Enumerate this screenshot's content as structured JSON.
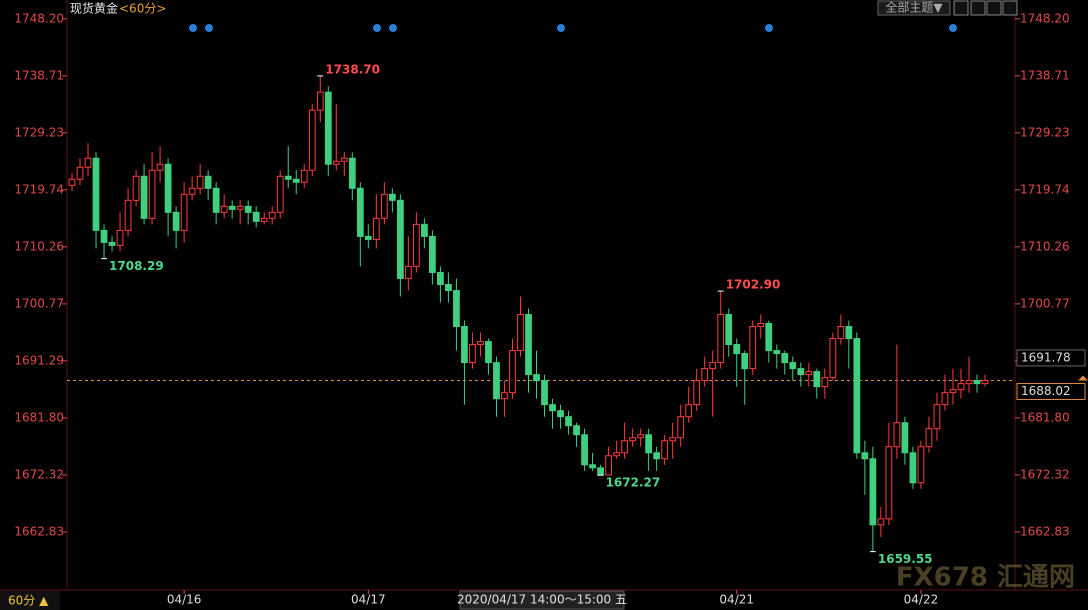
{
  "chart_data": {
    "type": "candlestick",
    "title": "现货黄金",
    "interval": "<60分>",
    "interval_button": "60分 ▲",
    "theme_button": "全部主题▼",
    "crosshair_time": "2020/04/17 14:00～15:00 五",
    "watermark": "FX678 汇通网",
    "ylim": [
      1653.5,
      1748.5
    ],
    "yticks": [
      {
        "value": 1748.2,
        "label": "1748.20"
      },
      {
        "value": 1738.71,
        "label": "1738.71"
      },
      {
        "value": 1729.23,
        "label": "1729.23"
      },
      {
        "value": 1719.74,
        "label": "1719.74"
      },
      {
        "value": 1710.26,
        "label": "1710.26"
      },
      {
        "value": 1700.77,
        "label": "1700.77"
      },
      {
        "value": 1691.29,
        "label": "1691.29"
      },
      {
        "value": 1681.8,
        "label": "1681.80"
      },
      {
        "value": 1672.32,
        "label": "1672.32"
      },
      {
        "value": 1662.83,
        "label": "1662.83"
      }
    ],
    "reference_price": 1691.78,
    "last_price": 1688.02,
    "extremes": [
      {
        "value": 1738.7,
        "label": "1738.70"
      },
      {
        "value": 1708.29,
        "label": "1708.29"
      },
      {
        "value": 1702.9,
        "label": "1702.90"
      },
      {
        "value": 1672.27,
        "label": "1672.27"
      },
      {
        "value": 1659.55,
        "label": "1659.55"
      }
    ],
    "up_color": "#ff3b3b",
    "down_color": "#3ed07f",
    "categories": [
      null,
      null,
      null,
      null,
      null,
      null,
      null,
      null,
      null,
      null,
      null,
      null,
      null,
      null,
      "04/16",
      null,
      null,
      null,
      null,
      null,
      null,
      null,
      null,
      null,
      null,
      null,
      null,
      null,
      null,
      null,
      null,
      null,
      null,
      null,
      null,
      null,
      null,
      "04/17",
      null,
      null,
      null,
      null,
      null,
      null,
      null,
      null,
      null,
      null,
      null,
      null,
      null,
      null,
      null,
      null,
      null,
      null,
      null,
      null,
      null,
      null,
      null,
      null,
      null,
      null,
      null,
      null,
      null,
      null,
      null,
      null,
      null,
      null,
      null,
      null,
      null,
      null,
      null,
      null,
      null,
      null,
      null,
      null,
      null,
      "04/21",
      null,
      null,
      null,
      null,
      null,
      null,
      null,
      null,
      null,
      null,
      null,
      null,
      null,
      null,
      null,
      null,
      null,
      null,
      null,
      null,
      null,
      null,
      "04/22",
      null,
      null,
      null,
      null,
      null,
      null,
      null,
      null
    ],
    "series": [
      {
        "open": [
          1720.5,
          1721.5,
          1723.5,
          1725,
          1713,
          1711,
          1710.5,
          1713,
          1718,
          1722,
          1715,
          1723,
          1724,
          1716,
          1713,
          1719,
          1720,
          1722,
          1720,
          1716,
          1717,
          1716.5,
          1717,
          1716,
          1714.5,
          1715,
          1716,
          1722,
          1721.5,
          1721,
          1723,
          1733,
          1736,
          1724,
          1724.5,
          1725,
          1720,
          1712,
          1711.5,
          1715,
          1719,
          1718,
          1705,
          1707,
          1714,
          1712,
          1706,
          1704,
          1703,
          1697,
          1691,
          1694,
          1694.5,
          1691,
          1685,
          1686,
          1693,
          1699,
          1689,
          1688,
          1684,
          1683,
          1682,
          1680.5,
          1679,
          1674,
          1673.5,
          1672.3,
          1675.5,
          1676,
          1678,
          1678.5,
          1679,
          1676,
          1675,
          1678,
          1678.5,
          1682,
          1684,
          1688,
          1690,
          1691,
          1699,
          1694,
          1692.5,
          1690,
          1697,
          1697.5,
          1693,
          1692.5,
          1691,
          1690,
          1689,
          1689.5,
          1687,
          1688.5,
          1695,
          1697,
          1695,
          1676,
          1675,
          1664,
          1665,
          1677,
          1681,
          1676,
          1671,
          1677,
          1680,
          1684,
          1686,
          1686.5,
          1687.5,
          1688,
          1687.5
        ],
        "high": [
          1722.5,
          1725,
          1727.5,
          1726,
          1714,
          1712,
          1716,
          1720,
          1723,
          1724,
          1726,
          1727,
          1725,
          1717,
          1721,
          1722,
          1724,
          1723,
          1721,
          1719,
          1718,
          1718,
          1718,
          1717,
          1716,
          1717,
          1723,
          1727,
          1723,
          1724,
          1734,
          1738.7,
          1737,
          1734,
          1726,
          1726,
          1721,
          1714,
          1719,
          1721,
          1720,
          1719,
          1712,
          1716,
          1715,
          1713,
          1707,
          1706,
          1705,
          1698,
          1696,
          1696,
          1695,
          1692,
          1688,
          1695,
          1702,
          1700,
          1693,
          1689,
          1685,
          1684,
          1683,
          1681,
          1680,
          1676,
          1674,
          1677,
          1678,
          1681,
          1680,
          1680,
          1680,
          1677,
          1679,
          1681,
          1684,
          1687,
          1690,
          1692,
          1693,
          1702.9,
          1700,
          1695,
          1693,
          1698,
          1699,
          1698,
          1694,
          1693,
          1692,
          1691,
          1691,
          1690,
          1690,
          1696,
          1699,
          1698,
          1696,
          1678,
          1677,
          1667,
          1681,
          1694,
          1682,
          1677,
          1678,
          1682,
          1686,
          1689,
          1690,
          1690,
          1692,
          1689,
          1689
        ],
        "low": [
          1719.5,
          1720.5,
          1722,
          1710,
          1708.29,
          1709.5,
          1709.5,
          1712,
          1717,
          1714,
          1714,
          1721,
          1712,
          1710,
          1711,
          1718,
          1719,
          1718,
          1714,
          1715,
          1715,
          1714,
          1714,
          1713.5,
          1714,
          1714,
          1715,
          1720,
          1719,
          1720,
          1722,
          1731,
          1722,
          1723,
          1722,
          1718,
          1707,
          1710,
          1710,
          1714,
          1716,
          1702,
          1703,
          1706,
          1710,
          1704,
          1701,
          1701,
          1693,
          1684,
          1690,
          1692,
          1689,
          1682,
          1682,
          1685,
          1692,
          1686,
          1685,
          1682,
          1680,
          1680,
          1679,
          1677,
          1673,
          1673,
          1672.27,
          1672.5,
          1675,
          1675,
          1677,
          1677,
          1673,
          1673,
          1674,
          1675,
          1677,
          1681,
          1683,
          1687,
          1682,
          1690,
          1692,
          1687,
          1684,
          1689,
          1695,
          1691,
          1690,
          1689,
          1688,
          1687,
          1687,
          1685,
          1685,
          1688,
          1694,
          1690,
          1675,
          1669,
          1659.55,
          1662,
          1664,
          1675,
          1674,
          1670,
          1670,
          1676,
          1678,
          1683,
          1684,
          1685,
          1686,
          1686,
          1687
        ],
        "close": [
          1721.5,
          1723.5,
          1725,
          1713,
          1711,
          1710.5,
          1713,
          1718,
          1722,
          1715,
          1723,
          1724,
          1716,
          1713,
          1719,
          1720,
          1722,
          1720,
          1716,
          1717,
          1716.5,
          1717,
          1716,
          1714.5,
          1715,
          1716,
          1722,
          1721.5,
          1721,
          1723,
          1733,
          1736,
          1724,
          1724.5,
          1725,
          1720,
          1712,
          1711.5,
          1715,
          1719,
          1718,
          1705,
          1707,
          1714,
          1712,
          1706,
          1704,
          1703,
          1697,
          1691,
          1694,
          1694.5,
          1691,
          1685,
          1686,
          1693,
          1699,
          1689,
          1688,
          1684,
          1683,
          1682,
          1680.5,
          1679,
          1674,
          1673.5,
          1672.3,
          1675.5,
          1676,
          1678,
          1678.5,
          1679,
          1676,
          1675,
          1678,
          1678.5,
          1682,
          1684,
          1688,
          1690,
          1691,
          1699,
          1694,
          1692.5,
          1690,
          1697,
          1697.5,
          1693,
          1692.5,
          1691,
          1690,
          1689,
          1689.5,
          1687,
          1688.5,
          1695,
          1697,
          1695,
          1676,
          1675,
          1664,
          1665,
          1677,
          1681,
          1676,
          1671,
          1677,
          1680,
          1684,
          1686,
          1686.5,
          1687.5,
          1688,
          1687.5,
          1688.02
        ]
      }
    ]
  }
}
